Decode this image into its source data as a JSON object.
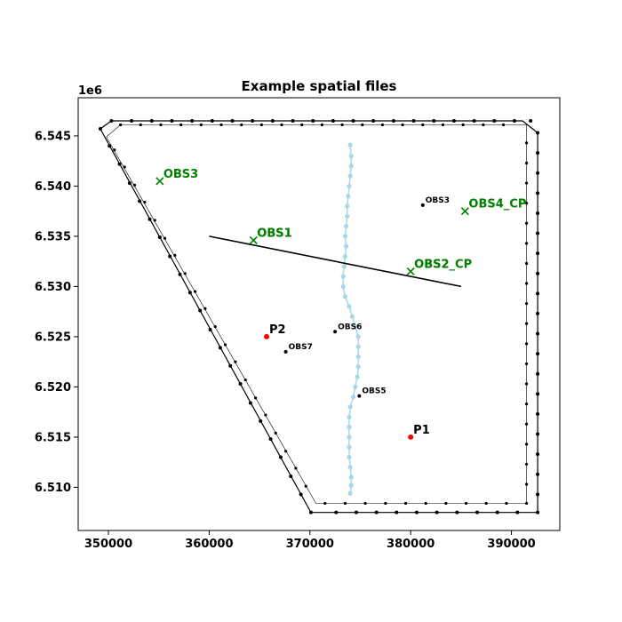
{
  "chart_data": {
    "type": "scatter",
    "title": "Example spatial files",
    "xlabel": "",
    "ylabel": "",
    "y_offset_label": "1e6",
    "xlim": [
      347000,
      394800
    ],
    "ylim": [
      6505700,
      6548800
    ],
    "grid": false,
    "x_ticks": [
      {
        "value": 350000,
        "label": "350000"
      },
      {
        "value": 360000,
        "label": "360000"
      },
      {
        "value": 370000,
        "label": "370000"
      },
      {
        "value": 380000,
        "label": "380000"
      },
      {
        "value": 390000,
        "label": "390000"
      }
    ],
    "y_ticks": [
      {
        "value": 6510000,
        "label": "6.510"
      },
      {
        "value": 6515000,
        "label": "6.515"
      },
      {
        "value": 6520000,
        "label": "6.520"
      },
      {
        "value": 6525000,
        "label": "6.525"
      },
      {
        "value": 6530000,
        "label": "6.530"
      },
      {
        "value": 6535000,
        "label": "6.535"
      },
      {
        "value": 6540000,
        "label": "6.540"
      },
      {
        "value": 6545000,
        "label": "6.545"
      }
    ],
    "outer_boundary": {
      "color": "#000000",
      "vertices": [
        [
          349200,
          6545700
        ],
        [
          350300,
          6546500
        ],
        [
          391100,
          6546500
        ],
        [
          392600,
          6545300
        ],
        [
          392600,
          6507500
        ],
        [
          370100,
          6507500
        ],
        [
          349200,
          6545700
        ]
      ],
      "points": [
        [
          350300,
          6546500
        ],
        [
          352300,
          6546500
        ],
        [
          354300,
          6546500
        ],
        [
          356300,
          6546500
        ],
        [
          358300,
          6546500
        ],
        [
          360300,
          6546500
        ],
        [
          362300,
          6546500
        ],
        [
          364300,
          6546500
        ],
        [
          366300,
          6546500
        ],
        [
          368300,
          6546500
        ],
        [
          370300,
          6546500
        ],
        [
          372300,
          6546500
        ],
        [
          374300,
          6546500
        ],
        [
          376300,
          6546500
        ],
        [
          378300,
          6546500
        ],
        [
          380300,
          6546500
        ],
        [
          382300,
          6546500
        ],
        [
          384300,
          6546500
        ],
        [
          386300,
          6546500
        ],
        [
          388300,
          6546500
        ],
        [
          390300,
          6546500
        ],
        [
          391900,
          6546500
        ],
        [
          392600,
          6545300
        ],
        [
          392600,
          6543300
        ],
        [
          392600,
          6541300
        ],
        [
          392600,
          6539300
        ],
        [
          392600,
          6537300
        ],
        [
          392600,
          6535300
        ],
        [
          392600,
          6533300
        ],
        [
          392600,
          6531300
        ],
        [
          392600,
          6529300
        ],
        [
          392600,
          6527300
        ],
        [
          392600,
          6525300
        ],
        [
          392600,
          6523300
        ],
        [
          392600,
          6521300
        ],
        [
          392600,
          6519300
        ],
        [
          392600,
          6517300
        ],
        [
          392600,
          6515300
        ],
        [
          392600,
          6513300
        ],
        [
          392600,
          6511300
        ],
        [
          392600,
          6509300
        ],
        [
          392600,
          6507500
        ],
        [
          390600,
          6507500
        ],
        [
          388600,
          6507500
        ],
        [
          386600,
          6507500
        ],
        [
          384600,
          6507500
        ],
        [
          382600,
          6507500
        ],
        [
          380600,
          6507500
        ],
        [
          378600,
          6507500
        ],
        [
          376600,
          6507500
        ],
        [
          374600,
          6507500
        ],
        [
          372600,
          6507500
        ],
        [
          370100,
          6507500
        ],
        [
          369100,
          6509300
        ],
        [
          368100,
          6511100
        ],
        [
          367100,
          6513000
        ],
        [
          366100,
          6514800
        ],
        [
          365100,
          6516600
        ],
        [
          364100,
          6518400
        ],
        [
          363100,
          6520300
        ],
        [
          362100,
          6522100
        ],
        [
          361100,
          6523900
        ],
        [
          360100,
          6525700
        ],
        [
          359100,
          6527600
        ],
        [
          358100,
          6529400
        ],
        [
          357100,
          6531200
        ],
        [
          356100,
          6533000
        ],
        [
          355100,
          6534900
        ],
        [
          354100,
          6536700
        ],
        [
          353100,
          6538500
        ],
        [
          352100,
          6540300
        ],
        [
          351100,
          6542200
        ],
        [
          350100,
          6544000
        ],
        [
          349200,
          6545700
        ]
      ]
    },
    "inner_boundary": {
      "color": "#000000",
      "vertices": [
        [
          349800,
          6544900
        ],
        [
          351200,
          6546100
        ],
        [
          391500,
          6546100
        ],
        [
          391500,
          6508400
        ],
        [
          370600,
          6508400
        ],
        [
          349800,
          6544900
        ]
      ],
      "points": [
        [
          351200,
          6546100
        ],
        [
          353200,
          6546100
        ],
        [
          355200,
          6546100
        ],
        [
          357200,
          6546100
        ],
        [
          359200,
          6546100
        ],
        [
          361200,
          6546100
        ],
        [
          363200,
          6546100
        ],
        [
          365200,
          6546100
        ],
        [
          367200,
          6546100
        ],
        [
          369200,
          6546100
        ],
        [
          371200,
          6546100
        ],
        [
          373200,
          6546100
        ],
        [
          375200,
          6546100
        ],
        [
          377200,
          6546100
        ],
        [
          379200,
          6546100
        ],
        [
          381200,
          6546100
        ],
        [
          383200,
          6546100
        ],
        [
          385200,
          6546100
        ],
        [
          387200,
          6546100
        ],
        [
          389200,
          6546100
        ],
        [
          391500,
          6544300
        ],
        [
          391500,
          6542300
        ],
        [
          391500,
          6540300
        ],
        [
          391500,
          6538300
        ],
        [
          391500,
          6536300
        ],
        [
          391500,
          6534300
        ],
        [
          391500,
          6532300
        ],
        [
          391500,
          6530300
        ],
        [
          391500,
          6528300
        ],
        [
          391500,
          6526300
        ],
        [
          391500,
          6524300
        ],
        [
          391500,
          6522300
        ],
        [
          391500,
          6520300
        ],
        [
          391500,
          6518300
        ],
        [
          391500,
          6516300
        ],
        [
          391500,
          6514300
        ],
        [
          391500,
          6512300
        ],
        [
          391500,
          6510300
        ],
        [
          391500,
          6508400
        ],
        [
          389500,
          6508400
        ],
        [
          387500,
          6508400
        ],
        [
          385500,
          6508400
        ],
        [
          383500,
          6508400
        ],
        [
          381500,
          6508400
        ],
        [
          379500,
          6508400
        ],
        [
          377500,
          6508400
        ],
        [
          375500,
          6508400
        ],
        [
          373500,
          6508400
        ],
        [
          371500,
          6508400
        ],
        [
          369600,
          6510100
        ],
        [
          368600,
          6511900
        ],
        [
          367600,
          6513600
        ],
        [
          366600,
          6515400
        ],
        [
          365600,
          6517200
        ],
        [
          364600,
          6518900
        ],
        [
          363600,
          6520700
        ],
        [
          362600,
          6522500
        ],
        [
          361600,
          6524200
        ],
        [
          360600,
          6526000
        ],
        [
          359600,
          6527800
        ],
        [
          358600,
          6529500
        ],
        [
          357600,
          6531300
        ],
        [
          356600,
          6533100
        ],
        [
          355600,
          6534800
        ],
        [
          354600,
          6536600
        ],
        [
          353600,
          6538400
        ],
        [
          352600,
          6540100
        ],
        [
          351600,
          6541900
        ],
        [
          350600,
          6543600
        ]
      ]
    },
    "stream": {
      "color": "#a6d8ea",
      "points": [
        [
          374000,
          6544100
        ],
        [
          374100,
          6543000
        ],
        [
          374100,
          6542000
        ],
        [
          374000,
          6541000
        ],
        [
          373900,
          6540000
        ],
        [
          373800,
          6539000
        ],
        [
          373700,
          6538000
        ],
        [
          373700,
          6537000
        ],
        [
          373600,
          6536000
        ],
        [
          373500,
          6535000
        ],
        [
          373600,
          6534000
        ],
        [
          373500,
          6533000
        ],
        [
          373400,
          6532000
        ],
        [
          373300,
          6531000
        ],
        [
          373300,
          6530000
        ],
        [
          373500,
          6529000
        ],
        [
          373900,
          6528000
        ],
        [
          374200,
          6527000
        ],
        [
          374500,
          6526000
        ],
        [
          374800,
          6525000
        ],
        [
          374800,
          6524000
        ],
        [
          374800,
          6523000
        ],
        [
          374800,
          6522000
        ],
        [
          374700,
          6521000
        ],
        [
          374500,
          6520000
        ],
        [
          374300,
          6519000
        ],
        [
          374000,
          6518000
        ],
        [
          373900,
          6517000
        ],
        [
          373900,
          6516000
        ],
        [
          373900,
          6515000
        ],
        [
          373900,
          6514000
        ],
        [
          373900,
          6513000
        ],
        [
          374000,
          6512000
        ],
        [
          374100,
          6511000
        ],
        [
          374100,
          6510200
        ],
        [
          374000,
          6509400
        ]
      ]
    },
    "line": {
      "color": "#000000",
      "points": [
        [
          360000,
          6535000
        ],
        [
          385000,
          6530000
        ]
      ]
    },
    "points": [
      {
        "label": "P1",
        "x": 380000,
        "y": 6515000,
        "color": "#ff0000",
        "marker": "dot",
        "size": "large"
      },
      {
        "label": "P2",
        "x": 365700,
        "y": 6525000,
        "color": "#ff0000",
        "marker": "dot",
        "size": "large"
      }
    ],
    "obs_black": [
      {
        "label": "OBS3",
        "x": 381200,
        "y": 6538100
      },
      {
        "label": "OBS6",
        "x": 372500,
        "y": 6525500
      },
      {
        "label": "OBS7",
        "x": 367600,
        "y": 6523500
      },
      {
        "label": "OBS5",
        "x": 374900,
        "y": 6519100
      }
    ],
    "obs_green": {
      "color": "#008000",
      "marker": "x",
      "items": [
        {
          "label": "OBS3",
          "x": 355100,
          "y": 6540500
        },
        {
          "label": "OBS1",
          "x": 364400,
          "y": 6534600,
          "overlay": "OBS1"
        },
        {
          "label": "OBS2_CP",
          "x": 380000,
          "y": 6531500,
          "overlay": "OBS2"
        },
        {
          "label": "OBS4_CP",
          "x": 385400,
          "y": 6537500
        }
      ]
    }
  }
}
